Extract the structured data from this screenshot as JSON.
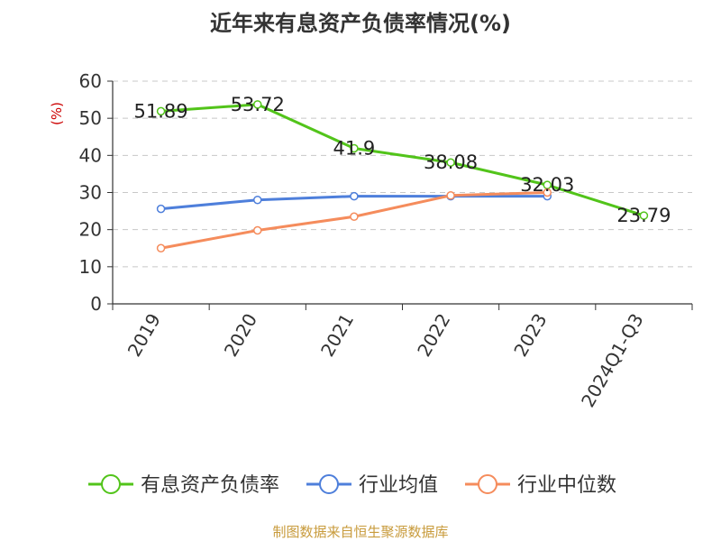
{
  "chart_data": {
    "type": "line",
    "title": "近年来有息资产负债率情况(%)",
    "ylabel": "(%)",
    "xlabel": "",
    "categories": [
      "2019",
      "2020",
      "2021",
      "2022",
      "2023",
      "2024Q1-Q3"
    ],
    "ylim": [
      0,
      60
    ],
    "yticks": [
      0,
      10,
      20,
      30,
      40,
      50,
      60
    ],
    "grid": true,
    "legend_position": "bottom",
    "series": [
      {
        "name": "有息资产负债率",
        "color": "#52c41a",
        "values": [
          51.89,
          53.72,
          41.9,
          38.08,
          32.03,
          23.79
        ],
        "data_labels": [
          "51.89",
          "53.72",
          "41.9",
          "38.08",
          "32.03",
          "23.79"
        ]
      },
      {
        "name": "行业均值",
        "color": "#4e7fdb",
        "values": [
          25.6,
          28.0,
          29.0,
          29.0,
          29.0,
          null
        ]
      },
      {
        "name": "行业中位数",
        "color": "#f58c5c",
        "values": [
          15.0,
          19.8,
          23.5,
          29.2,
          30.0,
          null
        ]
      }
    ],
    "source_text": "制图数据来自恒生聚源数据库",
    "source_color": "#c89b3c",
    "ylabel_color": "#cc0000"
  }
}
